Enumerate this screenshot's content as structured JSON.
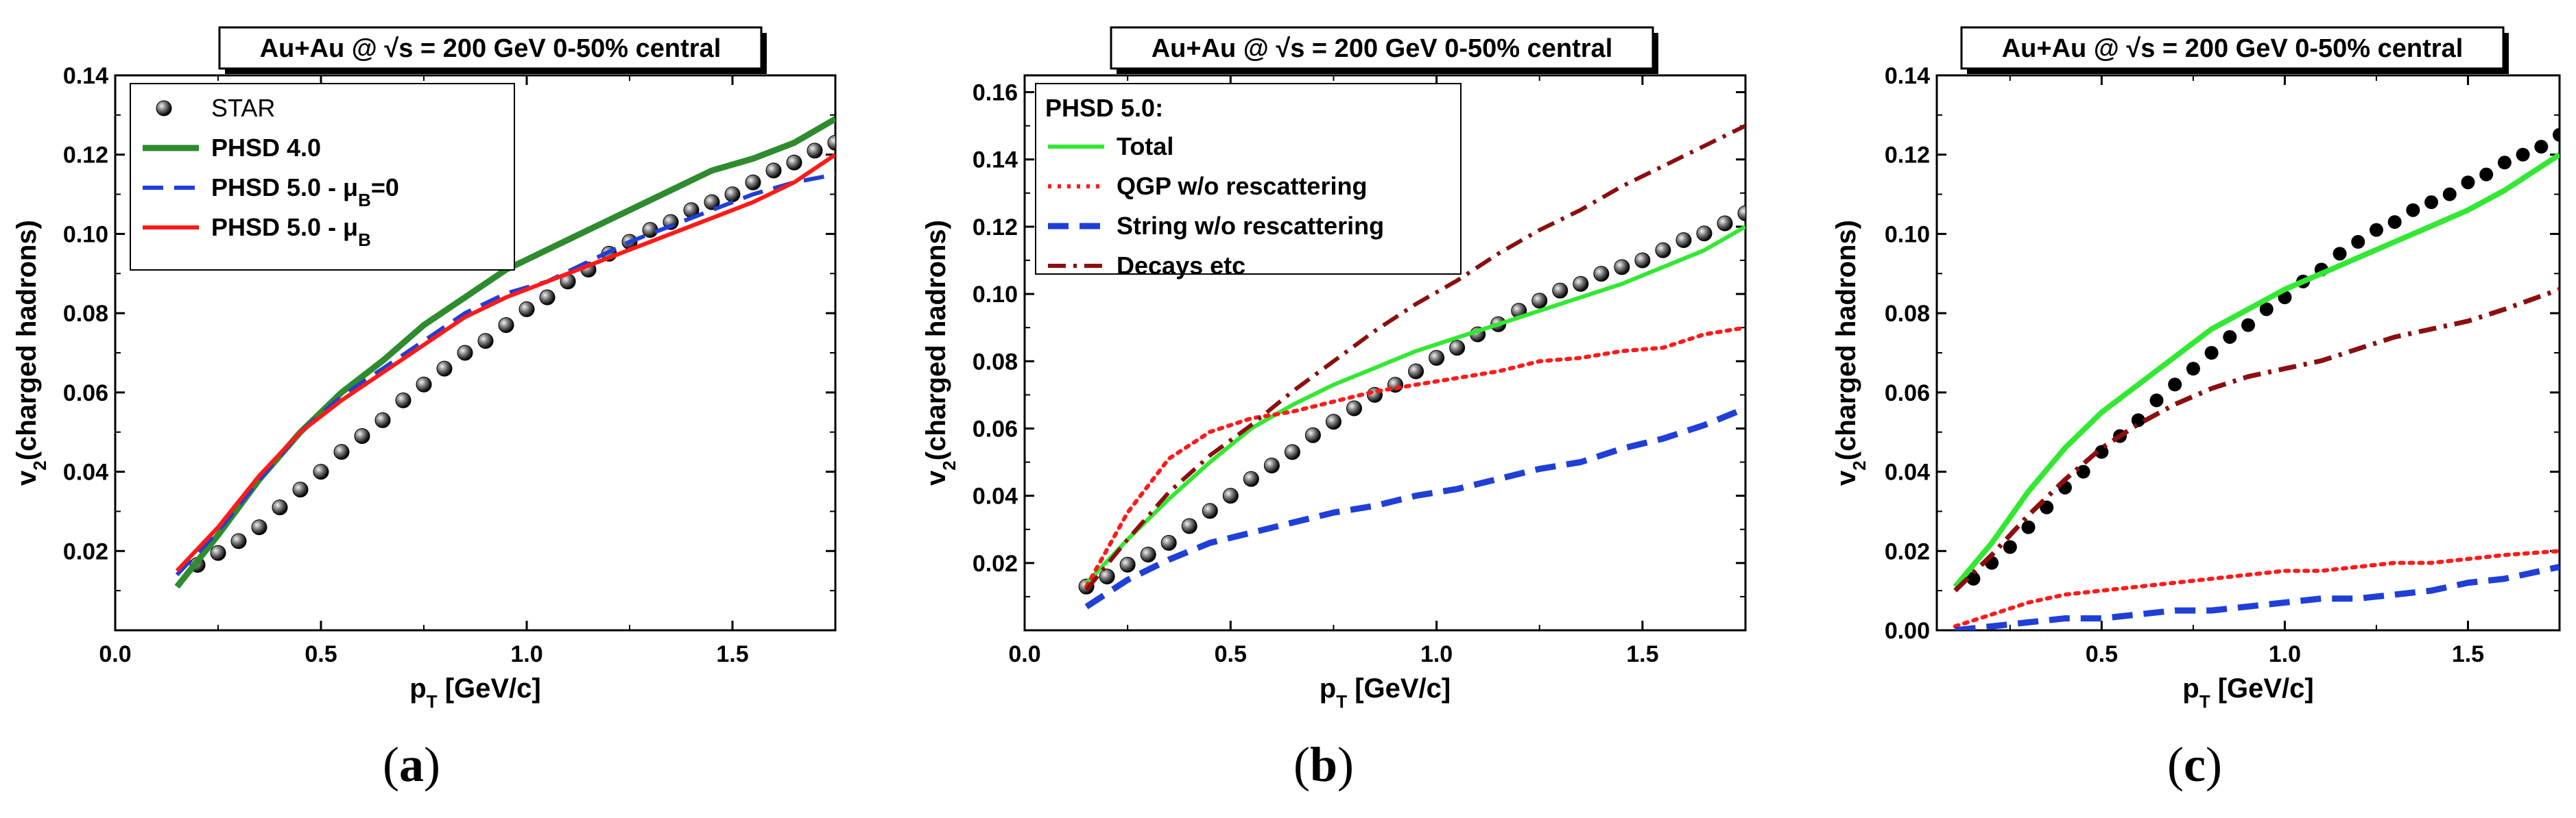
{
  "chart_data": [
    {
      "type": "line",
      "panel_label": "(a)",
      "panel_letter": "a",
      "title": "Au+Au @ √s = 200 GeV 0-50% central",
      "xlabel": "pT [GeV/c]",
      "ylabel": "v2(charged hadrons)",
      "xlim": [
        0.0,
        1.75
      ],
      "ylim": [
        0.0,
        0.14
      ],
      "xticks": [
        "0.0",
        "0.5",
        "1.0",
        "1.5"
      ],
      "xtick_values": [
        0.0,
        0.5,
        1.0,
        1.5
      ],
      "yticks": [
        "0.02",
        "0.04",
        "0.06",
        "0.08",
        "0.10",
        "0.12",
        "0.14"
      ],
      "ytick_values": [
        0.02,
        0.04,
        0.06,
        0.08,
        0.1,
        0.12,
        0.14
      ],
      "legend_position": "top-left",
      "legend_title": "",
      "series": [
        {
          "name": "STAR",
          "kind": "markers",
          "color": "#111111",
          "x": [
            0.2,
            0.25,
            0.3,
            0.35,
            0.4,
            0.45,
            0.5,
            0.55,
            0.6,
            0.65,
            0.7,
            0.75,
            0.8,
            0.85,
            0.9,
            0.95,
            1.0,
            1.05,
            1.1,
            1.15,
            1.2,
            1.25,
            1.3,
            1.35,
            1.4,
            1.45,
            1.5,
            1.55,
            1.6,
            1.65,
            1.7,
            1.75
          ],
          "y": [
            0.0165,
            0.0195,
            0.0225,
            0.026,
            0.031,
            0.0355,
            0.04,
            0.045,
            0.049,
            0.053,
            0.058,
            0.062,
            0.066,
            0.07,
            0.073,
            0.077,
            0.081,
            0.084,
            0.088,
            0.091,
            0.095,
            0.098,
            0.101,
            0.103,
            0.106,
            0.108,
            0.11,
            0.113,
            0.116,
            0.118,
            0.121,
            0.123
          ]
        },
        {
          "name": "PHSD 4.0",
          "kind": "line",
          "dash": "solid",
          "color": "#2e8b2e",
          "width": 9,
          "x": [
            0.15,
            0.25,
            0.35,
            0.45,
            0.55,
            0.65,
            0.75,
            0.85,
            0.95,
            1.05,
            1.15,
            1.25,
            1.35,
            1.45,
            1.55,
            1.65,
            1.75
          ],
          "y": [
            0.011,
            0.024,
            0.038,
            0.05,
            0.06,
            0.068,
            0.077,
            0.084,
            0.091,
            0.096,
            0.101,
            0.106,
            0.111,
            0.116,
            0.119,
            0.123,
            0.129
          ]
        },
        {
          "name": "PHSD 5.0 - μB=0",
          "kind": "line",
          "dash": "dashed",
          "color": "#1f3fd6",
          "width": 6,
          "x": [
            0.15,
            0.25,
            0.35,
            0.45,
            0.55,
            0.65,
            0.75,
            0.85,
            0.95,
            1.05,
            1.15,
            1.25,
            1.35,
            1.45,
            1.55,
            1.65,
            1.75
          ],
          "y": [
            0.014,
            0.025,
            0.038,
            0.05,
            0.059,
            0.066,
            0.073,
            0.08,
            0.085,
            0.088,
            0.093,
            0.098,
            0.102,
            0.106,
            0.11,
            0.113,
            0.115
          ]
        },
        {
          "name": "PHSD 5.0 - μB",
          "kind": "line",
          "dash": "solid",
          "color": "#ff1a1a",
          "width": 6,
          "x": [
            0.15,
            0.25,
            0.35,
            0.45,
            0.55,
            0.65,
            0.75,
            0.85,
            0.95,
            1.05,
            1.15,
            1.25,
            1.35,
            1.45,
            1.55,
            1.65,
            1.75
          ],
          "y": [
            0.015,
            0.026,
            0.039,
            0.05,
            0.058,
            0.065,
            0.072,
            0.079,
            0.084,
            0.088,
            0.092,
            0.096,
            0.1,
            0.104,
            0.108,
            0.113,
            0.12
          ]
        }
      ]
    },
    {
      "type": "line",
      "panel_label": "(b)",
      "panel_letter": "b",
      "title": "Au+Au @ √s = 200 GeV 0-50% central",
      "xlabel": "pT [GeV/c]",
      "ylabel": "v2(charged hadrons)",
      "xlim": [
        0.0,
        1.75
      ],
      "ylim": [
        0.0,
        0.165
      ],
      "xticks": [
        "0.0",
        "0.5",
        "1.0",
        "1.5"
      ],
      "xtick_values": [
        0.0,
        0.5,
        1.0,
        1.5
      ],
      "yticks": [
        "0.02",
        "0.04",
        "0.06",
        "0.08",
        "0.10",
        "0.12",
        "0.14",
        "0.16"
      ],
      "ytick_values": [
        0.02,
        0.04,
        0.06,
        0.08,
        0.1,
        0.12,
        0.14,
        0.16
      ],
      "legend_position": "top-left",
      "legend_title": "PHSD 5.0:",
      "series": [
        {
          "name": "STAR",
          "kind": "markers",
          "color": "#111111",
          "legend": false,
          "x": [
            0.15,
            0.2,
            0.25,
            0.3,
            0.35,
            0.4,
            0.45,
            0.5,
            0.55,
            0.6,
            0.65,
            0.7,
            0.75,
            0.8,
            0.85,
            0.9,
            0.95,
            1.0,
            1.05,
            1.1,
            1.15,
            1.2,
            1.25,
            1.3,
            1.35,
            1.4,
            1.45,
            1.5,
            1.55,
            1.6,
            1.65,
            1.7,
            1.75
          ],
          "y": [
            0.013,
            0.016,
            0.0195,
            0.0225,
            0.026,
            0.031,
            0.0355,
            0.04,
            0.045,
            0.049,
            0.053,
            0.058,
            0.062,
            0.066,
            0.07,
            0.073,
            0.077,
            0.081,
            0.084,
            0.088,
            0.091,
            0.095,
            0.098,
            0.101,
            0.103,
            0.106,
            0.108,
            0.11,
            0.113,
            0.116,
            0.118,
            0.121,
            0.124
          ]
        },
        {
          "name": "Total",
          "kind": "line",
          "dash": "solid",
          "color": "#33e833",
          "width": 6,
          "x": [
            0.15,
            0.25,
            0.35,
            0.45,
            0.55,
            0.65,
            0.75,
            0.85,
            0.95,
            1.05,
            1.15,
            1.25,
            1.35,
            1.45,
            1.55,
            1.65,
            1.75
          ],
          "y": [
            0.014,
            0.027,
            0.039,
            0.05,
            0.06,
            0.067,
            0.073,
            0.078,
            0.083,
            0.087,
            0.091,
            0.095,
            0.099,
            0.103,
            0.108,
            0.113,
            0.12
          ]
        },
        {
          "name": "QGP w/o rescattering",
          "kind": "line",
          "dash": "dotted",
          "color": "#ff1a1a",
          "width": 6,
          "x": [
            0.15,
            0.25,
            0.35,
            0.45,
            0.55,
            0.65,
            0.75,
            0.85,
            0.95,
            1.05,
            1.15,
            1.25,
            1.35,
            1.45,
            1.55,
            1.65,
            1.75
          ],
          "y": [
            0.013,
            0.035,
            0.051,
            0.059,
            0.063,
            0.065,
            0.068,
            0.071,
            0.073,
            0.075,
            0.077,
            0.08,
            0.081,
            0.083,
            0.084,
            0.088,
            0.09
          ]
        },
        {
          "name": "String w/o rescattering",
          "kind": "line",
          "dash": "dashed",
          "color": "#1f3fd6",
          "width": 9,
          "x": [
            0.15,
            0.25,
            0.35,
            0.45,
            0.55,
            0.65,
            0.75,
            0.85,
            0.95,
            1.05,
            1.15,
            1.25,
            1.35,
            1.45,
            1.55,
            1.65,
            1.75
          ],
          "y": [
            0.007,
            0.015,
            0.021,
            0.026,
            0.029,
            0.032,
            0.035,
            0.037,
            0.04,
            0.042,
            0.045,
            0.048,
            0.05,
            0.054,
            0.057,
            0.061,
            0.066
          ]
        },
        {
          "name": "Decays etc",
          "kind": "line",
          "dash": "dashdot",
          "color": "#8b0f0f",
          "width": 6,
          "x": [
            0.15,
            0.25,
            0.35,
            0.45,
            0.55,
            0.65,
            0.75,
            0.85,
            0.95,
            1.05,
            1.15,
            1.25,
            1.35,
            1.45,
            1.55,
            1.65,
            1.75
          ],
          "y": [
            0.012,
            0.027,
            0.041,
            0.052,
            0.061,
            0.071,
            0.08,
            0.089,
            0.097,
            0.104,
            0.112,
            0.119,
            0.125,
            0.132,
            0.138,
            0.144,
            0.15
          ]
        }
      ]
    },
    {
      "type": "line",
      "panel_label": "(c)",
      "panel_letter": "c",
      "title": "Au+Au @ √s = 200 GeV 0-50% central",
      "xlabel": "pT [GeV/c]",
      "ylabel": "v2(charged hadrons)",
      "xlim": [
        0.05,
        1.75
      ],
      "ylim": [
        0.0,
        0.14
      ],
      "xticks": [
        "0.5",
        "1.0",
        "1.5"
      ],
      "xtick_values": [
        0.5,
        1.0,
        1.5
      ],
      "yticks": [
        "0.00",
        "0.02",
        "0.04",
        "0.06",
        "0.08",
        "0.10",
        "0.12",
        "0.14"
      ],
      "ytick_values": [
        0.0,
        0.02,
        0.04,
        0.06,
        0.08,
        0.1,
        0.12,
        0.14
      ],
      "legend_position": "none",
      "legend_title": "",
      "series": [
        {
          "name": "STAR",
          "kind": "dots",
          "color": "#000000",
          "legend": false,
          "x": [
            0.15,
            0.2,
            0.25,
            0.3,
            0.35,
            0.4,
            0.45,
            0.5,
            0.55,
            0.6,
            0.65,
            0.7,
            0.75,
            0.8,
            0.85,
            0.9,
            0.95,
            1.0,
            1.05,
            1.1,
            1.15,
            1.2,
            1.25,
            1.3,
            1.35,
            1.4,
            1.45,
            1.5,
            1.55,
            1.6,
            1.65,
            1.7,
            1.75
          ],
          "y": [
            0.013,
            0.017,
            0.021,
            0.026,
            0.031,
            0.036,
            0.04,
            0.045,
            0.049,
            0.053,
            0.058,
            0.062,
            0.066,
            0.07,
            0.074,
            0.077,
            0.081,
            0.084,
            0.088,
            0.091,
            0.095,
            0.098,
            0.101,
            0.103,
            0.106,
            0.108,
            0.11,
            0.113,
            0.115,
            0.118,
            0.12,
            0.122,
            0.125
          ]
        },
        {
          "name": "Total",
          "kind": "line",
          "dash": "solid",
          "color": "#33e833",
          "width": 8,
          "legend": false,
          "x": [
            0.1,
            0.2,
            0.3,
            0.4,
            0.5,
            0.6,
            0.7,
            0.8,
            0.9,
            1.0,
            1.1,
            1.2,
            1.3,
            1.4,
            1.5,
            1.6,
            1.75
          ],
          "y": [
            0.011,
            0.022,
            0.035,
            0.046,
            0.055,
            0.062,
            0.069,
            0.076,
            0.081,
            0.086,
            0.09,
            0.094,
            0.098,
            0.102,
            0.106,
            0.111,
            0.12
          ]
        },
        {
          "name": "Decays etc",
          "kind": "line",
          "dash": "dashdot",
          "color": "#8b0f0f",
          "width": 7,
          "legend": false,
          "x": [
            0.1,
            0.2,
            0.3,
            0.4,
            0.5,
            0.6,
            0.7,
            0.8,
            0.9,
            1.0,
            1.1,
            1.2,
            1.3,
            1.4,
            1.5,
            1.6,
            1.75
          ],
          "y": [
            0.01,
            0.019,
            0.029,
            0.038,
            0.046,
            0.052,
            0.057,
            0.061,
            0.064,
            0.066,
            0.068,
            0.071,
            0.074,
            0.076,
            0.078,
            0.081,
            0.086
          ]
        },
        {
          "name": "QGP w/o rescattering",
          "kind": "line",
          "dash": "dotted",
          "color": "#ff1a1a",
          "width": 6,
          "legend": false,
          "x": [
            0.1,
            0.2,
            0.3,
            0.4,
            0.5,
            0.6,
            0.7,
            0.8,
            0.9,
            1.0,
            1.1,
            1.2,
            1.3,
            1.4,
            1.5,
            1.6,
            1.75
          ],
          "y": [
            0.001,
            0.004,
            0.007,
            0.009,
            0.01,
            0.011,
            0.012,
            0.013,
            0.014,
            0.015,
            0.015,
            0.016,
            0.017,
            0.017,
            0.018,
            0.019,
            0.02
          ]
        },
        {
          "name": "String w/o rescattering",
          "kind": "line",
          "dash": "dashed",
          "color": "#1f3fd6",
          "width": 9,
          "legend": false,
          "x": [
            0.1,
            0.2,
            0.3,
            0.4,
            0.5,
            0.6,
            0.7,
            0.8,
            0.9,
            1.0,
            1.1,
            1.2,
            1.3,
            1.4,
            1.5,
            1.6,
            1.75
          ],
          "y": [
            0.0,
            0.001,
            0.002,
            0.003,
            0.003,
            0.004,
            0.005,
            0.005,
            0.006,
            0.007,
            0.008,
            0.008,
            0.009,
            0.01,
            0.012,
            0.013,
            0.016
          ]
        }
      ]
    }
  ]
}
